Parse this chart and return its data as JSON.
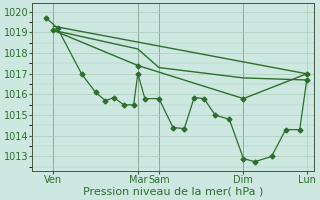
{
  "bg_color": "#cce8e0",
  "grid_color": "#b0ccbb",
  "line_color": "#2d6e2d",
  "xlabel": "Pression niveau de la mer( hPa )",
  "xlabel_fontsize": 8,
  "ylim": [
    1012.3,
    1020.4
  ],
  "yticks": [
    1013,
    1014,
    1015,
    1016,
    1017,
    1018,
    1019,
    1020
  ],
  "xlim": [
    0,
    20
  ],
  "vline_positions": [
    1.5,
    7.5,
    9.0,
    15.0
  ],
  "xtick_positions": [
    1.5,
    7.5,
    9.0,
    15.0,
    19.5
  ],
  "xtick_labels": [
    "Ven",
    "Mar",
    "Sam",
    "Dim",
    "Lun"
  ],
  "series": [
    {
      "x": [
        1.5,
        19.5
      ],
      "y": [
        1019.3,
        1017.0
      ],
      "has_markers": false,
      "linewidth": 1.0
    },
    {
      "x": [
        1.5,
        7.5,
        9.0,
        15.0,
        19.5
      ],
      "y": [
        1019.1,
        1018.2,
        1017.3,
        1016.8,
        1016.7
      ],
      "has_markers": false,
      "linewidth": 1.0
    },
    {
      "x": [
        1.0,
        1.8,
        3.5,
        4.5,
        5.2,
        5.8,
        6.5,
        7.2,
        7.5,
        8.0,
        9.0,
        10.0,
        10.8,
        11.5,
        12.2,
        13.0,
        14.0,
        15.0,
        15.8,
        17.0,
        18.0,
        19.0,
        19.5
      ],
      "y": [
        1019.7,
        1019.2,
        1017.0,
        1016.1,
        1015.7,
        1015.85,
        1015.5,
        1015.5,
        1017.0,
        1015.8,
        1015.8,
        1014.4,
        1014.35,
        1015.85,
        1015.8,
        1015.0,
        1014.8,
        1012.9,
        1012.75,
        1013.0,
        1014.3,
        1014.3,
        1016.7
      ],
      "has_markers": true,
      "linewidth": 0.9,
      "markersize": 2.5
    },
    {
      "x": [
        1.5,
        7.5,
        15.0,
        19.5
      ],
      "y": [
        1019.1,
        1017.4,
        1015.8,
        1017.0
      ],
      "has_markers": true,
      "linewidth": 1.0,
      "markersize": 2.5
    }
  ]
}
